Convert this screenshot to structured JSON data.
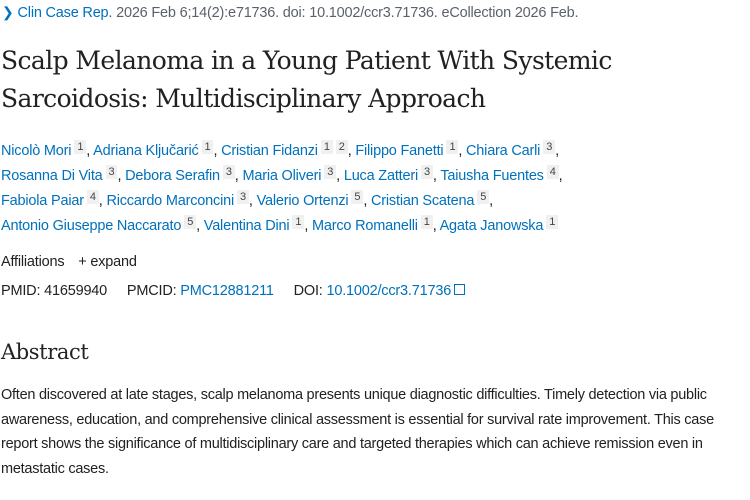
{
  "citation": {
    "journal": "Clin Case Rep.",
    "details": "2026 Feb 6;14(2):e71736. doi: 10.1002/ccr3.71736. eCollection 2026 Feb."
  },
  "title": "Scalp Melanoma in a Young Patient With Systemic Sarcoidosis: Multidisciplinary Approach",
  "author_lines": [
    [
      {
        "name": "Nicolò Mori",
        "aff": [
          "1"
        ]
      },
      {
        "name": "Adriana Ključarić",
        "aff": [
          "1"
        ]
      },
      {
        "name": "Cristian Fidanzi",
        "aff": [
          "1",
          "2"
        ]
      },
      {
        "name": "Filippo Fanetti",
        "aff": [
          "1"
        ]
      },
      {
        "name": "Chiara Carli",
        "aff": [
          "3"
        ]
      }
    ],
    [
      {
        "name": "Rosanna Di Vita",
        "aff": [
          "3"
        ]
      },
      {
        "name": "Debora Serafin",
        "aff": [
          "3"
        ]
      },
      {
        "name": "Maria Oliveri",
        "aff": [
          "3"
        ]
      },
      {
        "name": "Luca Zatteri",
        "aff": [
          "3"
        ]
      },
      {
        "name": "Taiusha Fuentes",
        "aff": [
          "4"
        ]
      }
    ],
    [
      {
        "name": "Fabiola Paiar",
        "aff": [
          "4"
        ]
      },
      {
        "name": "Riccardo Marconcini",
        "aff": [
          "3"
        ]
      },
      {
        "name": "Valerio Ortenzi",
        "aff": [
          "5"
        ]
      },
      {
        "name": "Cristian Scatena",
        "aff": [
          "5"
        ]
      }
    ],
    [
      {
        "name": "Antonio Giuseppe Naccarato",
        "aff": [
          "5"
        ]
      },
      {
        "name": "Valentina Dini",
        "aff": [
          "1"
        ]
      },
      {
        "name": "Marco Romanelli",
        "aff": [
          "1"
        ]
      },
      {
        "name": "Agata Janowska",
        "aff": [
          "1"
        ]
      }
    ]
  ],
  "affiliations": {
    "label": "Affiliations",
    "expand": "+ expand"
  },
  "ids": {
    "pmid_label": "PMID:",
    "pmid": "41659940",
    "pmcid_label": "PMCID:",
    "pmcid": "PMC12881211",
    "doi_label": "DOI:",
    "doi": "10.1002/ccr3.71736"
  },
  "abstract": {
    "heading": "Abstract",
    "text": "Often discovered at late stages, scalp melanoma presents unique diagnostic difficulties. Timely detection via public awareness, education, and comprehensive clinical assessment is essential for survival rate improvement. This case report shows the significance of multidisciplinary care and targeted therapies which can achieve remission even in metastatic cases."
  },
  "colors": {
    "link": "#0071bc",
    "text": "#212121",
    "muted": "#5b616b"
  }
}
